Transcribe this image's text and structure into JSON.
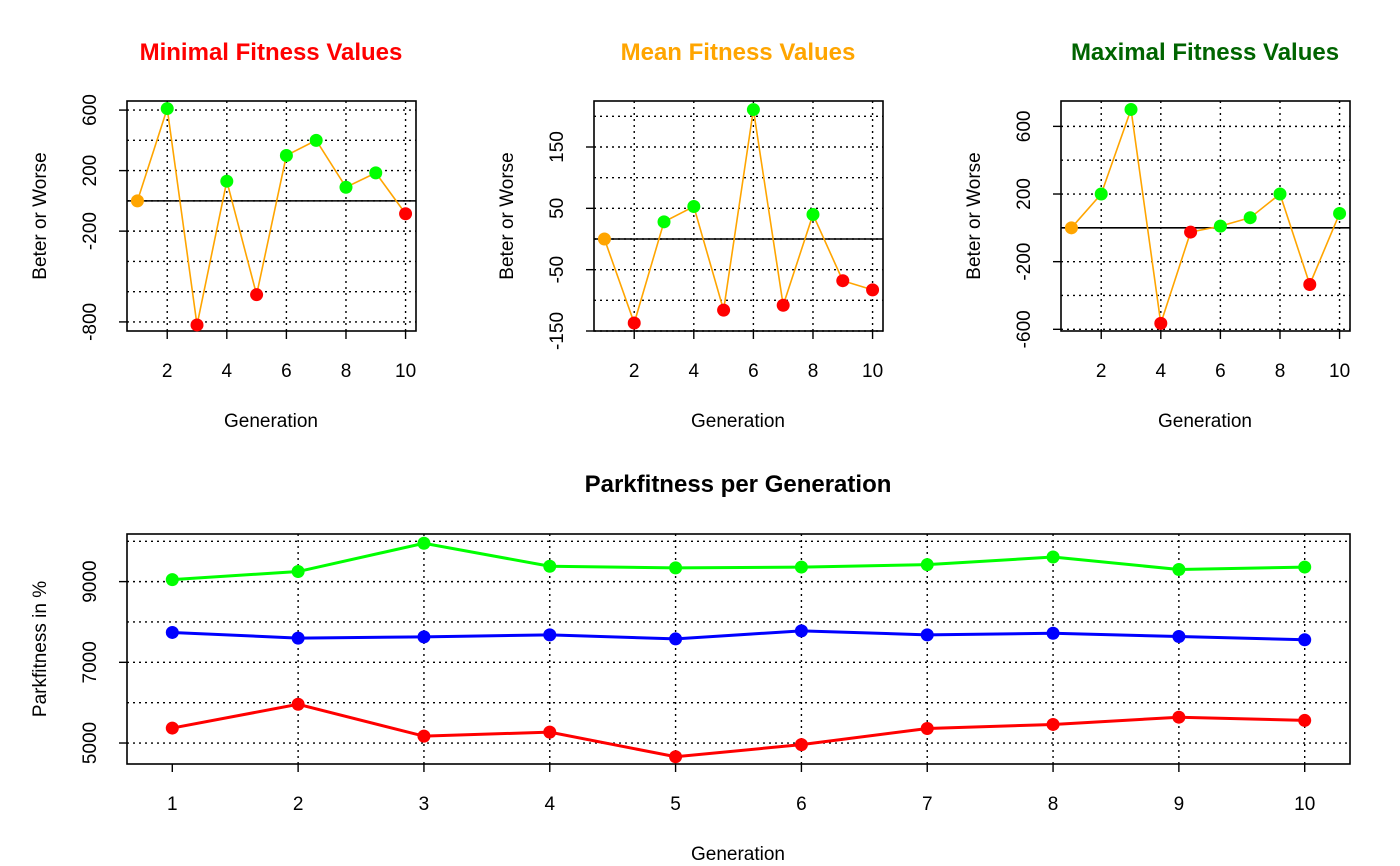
{
  "chart_data": [
    {
      "id": "minimal",
      "type": "line",
      "title": "Minimal Fitness Values",
      "title_color": "#ff0000",
      "xlabel": "Generation",
      "ylabel": "Beter or Worse",
      "xlim": [
        0.65,
        10.35
      ],
      "ylim": [
        -860,
        660
      ],
      "xticks": [
        2,
        4,
        6,
        8,
        10
      ],
      "yticks": [
        -800,
        -200,
        200,
        600
      ],
      "ygrid": [
        -800,
        -600,
        -400,
        -200,
        0,
        200,
        400,
        600
      ],
      "xgrid": [
        2,
        4,
        6,
        8,
        10
      ],
      "grid": true,
      "baseline": 0,
      "line_color": "#ffa500",
      "x": [
        1,
        2,
        3,
        4,
        5,
        6,
        7,
        8,
        9,
        10
      ],
      "y": [
        0,
        610,
        -820,
        130,
        -620,
        300,
        400,
        90,
        185,
        -85
      ],
      "point_colors": [
        "#ffa500",
        "#00ff00",
        "#ff0000",
        "#00ff00",
        "#ff0000",
        "#00ff00",
        "#00ff00",
        "#00ff00",
        "#00ff00",
        "#ff0000"
      ]
    },
    {
      "id": "mean",
      "type": "line",
      "title": "Mean Fitness Values",
      "title_color": "#ffa500",
      "xlabel": "Generation",
      "ylabel": "Beter or Worse",
      "xlim": [
        0.65,
        10.35
      ],
      "ylim": [
        -150,
        225
      ],
      "xticks": [
        2,
        4,
        6,
        8,
        10
      ],
      "yticks": [
        -150,
        -50,
        50,
        150
      ],
      "ygrid": [
        -150,
        -100,
        -50,
        0,
        50,
        100,
        150,
        200
      ],
      "xgrid": [
        2,
        4,
        6,
        8,
        10
      ],
      "grid": true,
      "baseline": 0,
      "line_color": "#ffa500",
      "x": [
        1,
        2,
        3,
        4,
        5,
        6,
        7,
        8,
        9,
        10
      ],
      "y": [
        0,
        -137,
        28,
        53,
        -116,
        211,
        -108,
        40,
        -68,
        -83
      ],
      "point_colors": [
        "#ffa500",
        "#ff0000",
        "#00ff00",
        "#00ff00",
        "#ff0000",
        "#00ff00",
        "#ff0000",
        "#00ff00",
        "#ff0000",
        "#ff0000"
      ]
    },
    {
      "id": "maximal",
      "type": "line",
      "title": "Maximal Fitness Values",
      "title_color": "#006400",
      "xlabel": "Generation",
      "ylabel": "Beter or Worse",
      "xlim": [
        0.65,
        10.35
      ],
      "ylim": [
        -610,
        750
      ],
      "xticks": [
        2,
        4,
        6,
        8,
        10
      ],
      "yticks": [
        -600,
        -200,
        200,
        600
      ],
      "ygrid": [
        -600,
        -400,
        -200,
        0,
        200,
        400,
        600
      ],
      "xgrid": [
        2,
        4,
        6,
        8,
        10
      ],
      "grid": true,
      "baseline": 0,
      "line_color": "#ffa500",
      "x": [
        1,
        2,
        3,
        4,
        5,
        6,
        7,
        8,
        9,
        10
      ],
      "y": [
        0,
        200,
        700,
        -565,
        -25,
        10,
        60,
        200,
        -335,
        85
      ],
      "point_colors": [
        "#ffa500",
        "#00ff00",
        "#00ff00",
        "#ff0000",
        "#ff0000",
        "#00ff00",
        "#00ff00",
        "#00ff00",
        "#ff0000",
        "#00ff00"
      ]
    },
    {
      "id": "parkfitness",
      "type": "line",
      "title": "Parkfitness per Generation",
      "title_color": "#000000",
      "xlabel": "Generation",
      "ylabel": "Parkfitness in %",
      "xlim": [
        0.64,
        10.36
      ],
      "ylim": [
        4480,
        10180
      ],
      "xticks": [
        1,
        2,
        3,
        4,
        5,
        6,
        7,
        8,
        9,
        10
      ],
      "yticks": [
        5000,
        7000,
        9000
      ],
      "ygrid": [
        5000,
        6000,
        7000,
        8000,
        9000,
        10000
      ],
      "xgrid": [
        2,
        3,
        4,
        5,
        6,
        7,
        8,
        9,
        10
      ],
      "grid": true,
      "x": [
        1,
        2,
        3,
        4,
        5,
        6,
        7,
        8,
        9,
        10
      ],
      "series": [
        {
          "color": "#00ff00",
          "values": [
            9050,
            9250,
            9950,
            9380,
            9340,
            9360,
            9420,
            9610,
            9300,
            9360
          ]
        },
        {
          "color": "#0000ff",
          "values": [
            7740,
            7600,
            7630,
            7680,
            7580,
            7780,
            7680,
            7720,
            7640,
            7560
          ]
        },
        {
          "color": "#ff0000",
          "values": [
            5370,
            5960,
            5170,
            5270,
            4660,
            4960,
            5360,
            5460,
            5640,
            5560
          ]
        }
      ]
    }
  ]
}
